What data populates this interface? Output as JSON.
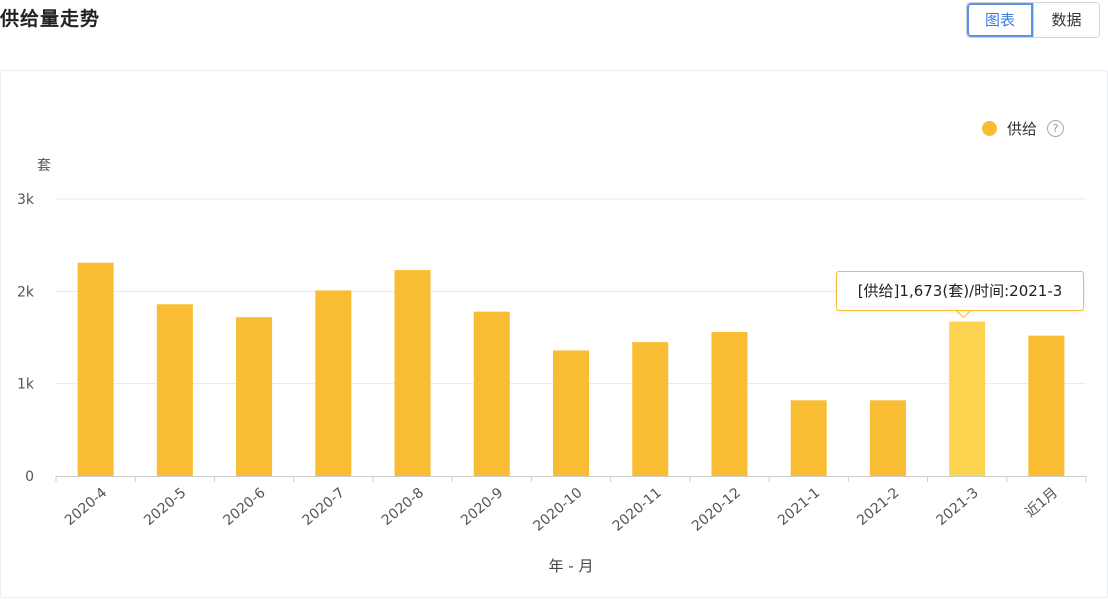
{
  "header": {
    "title": "供给量走势",
    "tabs": [
      {
        "label": "图表",
        "active": true
      },
      {
        "label": "数据",
        "active": false
      }
    ]
  },
  "legend": {
    "label": "供给",
    "help": "?"
  },
  "tooltip": {
    "text": "[供给]1,673(套)/时间:2021-3"
  },
  "colors": {
    "bar": "#f8bd32",
    "bar_highlight": "#fdd44f",
    "grid": "#e8e8e8",
    "axis": "#cccccc",
    "accent": "#3c7bd8"
  },
  "chart_data": {
    "type": "bar",
    "categories": [
      "2020-4",
      "2020-5",
      "2020-6",
      "2020-7",
      "2020-8",
      "2020-9",
      "2020-10",
      "2020-11",
      "2020-12",
      "2021-1",
      "2021-2",
      "2021-3",
      "近1月"
    ],
    "series": [
      {
        "name": "供给",
        "values": [
          2310,
          1860,
          1720,
          2010,
          2230,
          1780,
          1360,
          1450,
          1560,
          820,
          820,
          1673,
          1520
        ]
      }
    ],
    "highlight_index": 11,
    "ylabel": "套",
    "xlabel": "年 - 月",
    "yticks": [
      0,
      1000,
      2000,
      3000
    ],
    "ytick_labels": [
      "0",
      "1k",
      "2k",
      "3k"
    ],
    "ylim": [
      0,
      3000
    ],
    "grid": true,
    "legend_position": "top-right"
  }
}
